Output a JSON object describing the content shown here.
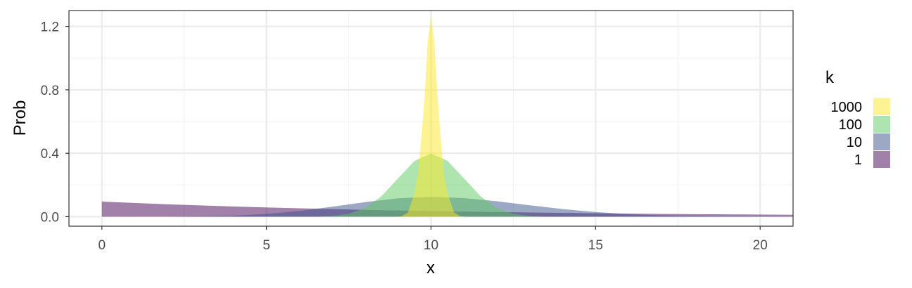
{
  "chart_data": {
    "type": "area",
    "xlabel": "x",
    "ylabel": "Prob",
    "xlim": [
      -1,
      21
    ],
    "ylim": [
      -0.06,
      1.3
    ],
    "x_ticks": [
      0,
      5,
      10,
      15,
      20
    ],
    "x_tick_labels": [
      "0",
      "5",
      "10",
      "15",
      "20"
    ],
    "y_ticks": [
      0.0,
      0.4,
      0.8,
      1.2
    ],
    "y_tick_labels": [
      "0.0",
      "0.4",
      "0.8",
      "1.2"
    ],
    "grid": true,
    "legend": {
      "title": "k",
      "position": "right",
      "items": [
        {
          "label": "1000",
          "color": "#fde725"
        },
        {
          "label": "100",
          "color": "#5ec962"
        },
        {
          "label": "10",
          "color": "#3b528b"
        },
        {
          "label": "1",
          "color": "#440154"
        }
      ]
    },
    "series": [
      {
        "name": "1",
        "color": "#440154",
        "opacity": 0.5,
        "x": [
          0,
          2,
          4,
          6,
          8,
          10,
          12,
          14,
          16,
          18,
          21
        ],
        "y": [
          0.095,
          0.078,
          0.064,
          0.053,
          0.043,
          0.035,
          0.029,
          0.024,
          0.019,
          0.016,
          0.012
        ]
      },
      {
        "name": "10",
        "color": "#3b528b",
        "opacity": 0.5,
        "x": [
          2,
          3,
          4,
          5,
          6,
          7,
          8,
          9,
          10,
          11,
          12,
          13,
          14,
          15,
          16,
          17,
          18,
          19,
          20,
          21
        ],
        "y": [
          0.0,
          0.002,
          0.006,
          0.017,
          0.036,
          0.063,
          0.092,
          0.116,
          0.125,
          0.117,
          0.097,
          0.072,
          0.048,
          0.029,
          0.016,
          0.008,
          0.004,
          0.002,
          0.001,
          0.0
        ]
      },
      {
        "name": "100",
        "color": "#5ec962",
        "opacity": 0.5,
        "x": [
          6.5,
          7,
          7.5,
          8,
          8.5,
          9,
          9.5,
          10,
          10.5,
          11,
          11.5,
          12,
          12.5,
          13,
          13.5
        ],
        "y": [
          0.0,
          0.004,
          0.018,
          0.054,
          0.13,
          0.242,
          0.352,
          0.399,
          0.352,
          0.242,
          0.13,
          0.054,
          0.018,
          0.004,
          0.0
        ]
      },
      {
        "name": "1000",
        "color": "#fde725",
        "opacity": 0.5,
        "x": [
          8.9,
          9.1,
          9.3,
          9.5,
          9.6,
          9.7,
          9.8,
          9.9,
          10,
          10.1,
          10.2,
          10.3,
          10.4,
          10.5,
          10.7,
          10.9,
          11.1
        ],
        "y": [
          0.0,
          0.002,
          0.027,
          0.15,
          0.26,
          0.48,
          0.74,
          1.11,
          1.26,
          1.11,
          0.74,
          0.48,
          0.26,
          0.15,
          0.027,
          0.002,
          0.0
        ]
      }
    ]
  }
}
